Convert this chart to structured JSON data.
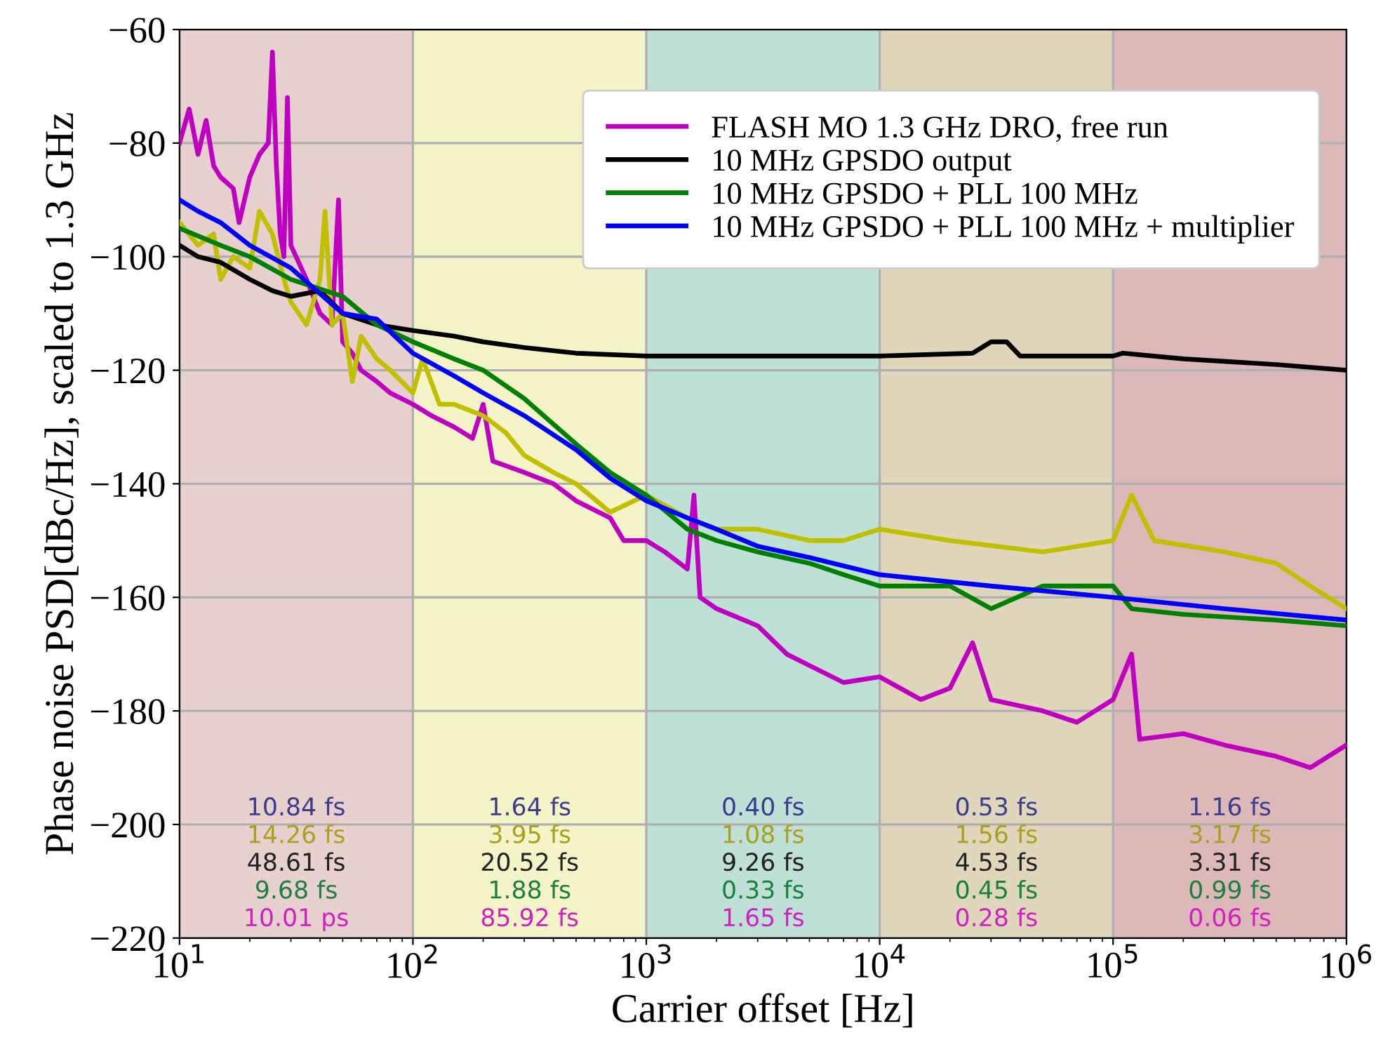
{
  "chart_data": {
    "type": "line",
    "xlabel": "Carrier offset [Hz]",
    "ylabel": "Phase noise PSD[dBc/Hz], scaled to 1.3 GHz",
    "log": "x",
    "xlim": [
      10,
      1000000
    ],
    "ylim": [
      -220,
      -60
    ],
    "xticks": [
      {
        "value": 10,
        "label": "10$^{1}$"
      },
      {
        "value": 100,
        "label": "10$^{2}$"
      },
      {
        "value": 1000,
        "label": "10$^{3}$"
      },
      {
        "value": 10000,
        "label": "10$^{4}$"
      },
      {
        "value": 100000,
        "label": "10$^{5}$"
      },
      {
        "value": 1000000,
        "label": "10$^{6}$"
      }
    ],
    "yticks": [
      {
        "value": -220,
        "label": "−220"
      },
      {
        "value": -200,
        "label": "−200"
      },
      {
        "value": -180,
        "label": "−180"
      },
      {
        "value": -160,
        "label": "−160"
      },
      {
        "value": -140,
        "label": "−140"
      },
      {
        "value": -120,
        "label": "−120"
      },
      {
        "value": -100,
        "label": "−100"
      },
      {
        "value": -80,
        "label": "−80"
      },
      {
        "value": -60,
        "label": "−60"
      }
    ],
    "grid": true,
    "legend": "top right",
    "bands": [
      {
        "axis": "x",
        "from": 10,
        "to": 100,
        "color": "#e8d0cf"
      },
      {
        "axis": "x",
        "from": 100,
        "to": 1000,
        "color": "#f5f3c8"
      },
      {
        "axis": "x",
        "from": 1000,
        "to": 10000,
        "color": "#bfe0d6"
      },
      {
        "axis": "x",
        "from": 10000,
        "to": 100000,
        "color": "#e0d6bb"
      },
      {
        "axis": "x",
        "from": 100000,
        "to": 1000000,
        "color": "#dcb8b8"
      }
    ],
    "series": [
      {
        "name": "FLASH MO 1.3 GHz DRO, free run",
        "color": "#c000c0",
        "x": [
          10,
          11,
          12,
          13,
          14,
          15,
          17,
          18,
          20,
          22,
          24,
          25,
          26,
          27,
          28,
          29,
          30,
          35,
          40,
          45,
          48,
          50,
          55,
          60,
          70,
          80,
          100,
          120,
          150,
          180,
          200,
          220,
          300,
          400,
          500,
          700,
          800,
          1000,
          1200,
          1500,
          1600,
          1700,
          2000,
          3000,
          4000,
          5000,
          7000,
          10000,
          15000,
          20000,
          25000,
          30000,
          50000,
          70000,
          100000,
          120000,
          130000,
          200000,
          300000,
          500000,
          700000,
          1000000
        ],
        "values": [
          -80,
          -74,
          -82,
          -76,
          -84,
          -86,
          -88,
          -94,
          -86,
          -82,
          -80,
          -64,
          -84,
          -96,
          -100,
          -72,
          -98,
          -104,
          -110,
          -112,
          -90,
          -115,
          -117,
          -120,
          -122,
          -124,
          -126,
          -128,
          -130,
          -132,
          -126,
          -136,
          -138,
          -140,
          -143,
          -146,
          -150,
          -150,
          -152,
          -155,
          -142,
          -160,
          -162,
          -165,
          -170,
          -172,
          -175,
          -174,
          -178,
          -176,
          -168,
          -178,
          -180,
          -182,
          -178,
          -170,
          -185,
          -184,
          -186,
          -188,
          -190,
          -186
        ]
      },
      {
        "color": "#c0c000",
        "x": [
          10,
          12,
          14,
          15,
          17,
          20,
          22,
          25,
          28,
          30,
          35,
          40,
          42,
          45,
          50,
          55,
          60,
          70,
          80,
          100,
          110,
          130,
          150,
          200,
          250,
          300,
          400,
          500,
          700,
          1000,
          1500,
          2000,
          3000,
          5000,
          7000,
          10000,
          20000,
          50000,
          100000,
          120000,
          150000,
          300000,
          500000,
          700000,
          1000000
        ],
        "values": [
          -94,
          -98,
          -96,
          -104,
          -100,
          -102,
          -92,
          -96,
          -104,
          -108,
          -112,
          -104,
          -92,
          -112,
          -110,
          -122,
          -114,
          -118,
          -120,
          -124,
          -118,
          -126,
          -126,
          -128,
          -131,
          -135,
          -138,
          -140,
          -145,
          -142,
          -146,
          -148,
          -148,
          -150,
          -150,
          -148,
          -150,
          -152,
          -150,
          -142,
          -150,
          -152,
          -154,
          -158,
          -162
        ]
      },
      {
        "name": "10 MHz GPSDO output",
        "color": "#000000",
        "x": [
          10,
          12,
          15,
          20,
          25,
          30,
          40,
          50,
          70,
          100,
          150,
          200,
          300,
          500,
          1000,
          3000,
          10000,
          25000,
          30000,
          35000,
          40000,
          100000,
          110000,
          200000,
          500000,
          1000000
        ],
        "values": [
          -98,
          -100,
          -101,
          -104,
          -106,
          -107,
          -106,
          -110,
          -112,
          -113,
          -114,
          -115,
          -116,
          -117,
          -117.5,
          -117.5,
          -117.5,
          -117,
          -115,
          -115,
          -117.5,
          -117.5,
          -117,
          -118,
          -119,
          -120
        ]
      },
      {
        "name": "10 MHz GPSDO + PLL 100 MHz",
        "color": "#008000",
        "x": [
          10,
          15,
          20,
          30,
          50,
          70,
          100,
          150,
          200,
          300,
          500,
          700,
          1000,
          1500,
          2000,
          3000,
          5000,
          7000,
          10000,
          20000,
          30000,
          50000,
          100000,
          120000,
          200000,
          500000,
          1000000
        ],
        "values": [
          -95,
          -98,
          -100,
          -104,
          -107,
          -112,
          -115,
          -118,
          -120,
          -125,
          -133,
          -138,
          -142,
          -148,
          -150,
          -152,
          -154,
          -156,
          -158,
          -158,
          -162,
          -158,
          -158,
          -162,
          -163,
          -164,
          -165
        ]
      },
      {
        "name": "10 MHz GPSDO + PLL 100 MHz + multiplier",
        "color": "#0000ff",
        "x": [
          10,
          12,
          15,
          20,
          30,
          50,
          70,
          100,
          150,
          200,
          300,
          500,
          700,
          1000,
          1500,
          2000,
          3000,
          5000,
          10000,
          30000,
          100000,
          300000,
          1000000
        ],
        "values": [
          -90,
          -92,
          -94,
          -98,
          -102,
          -110,
          -111,
          -117,
          -121,
          -124,
          -128,
          -134,
          -139,
          -143,
          -146,
          -148,
          -151,
          -153,
          -156,
          -158,
          -160,
          -162,
          -164
        ]
      }
    ],
    "annotations": [
      "10.84 fs",
      "14.26 fs",
      "48.61 fs",
      "9.68 fs",
      "10.01 ps",
      "1.64 fs",
      "3.95 fs",
      "20.52 fs",
      "1.88 fs",
      "85.92 fs",
      "0.40 fs",
      "1.08 fs",
      "9.26 fs",
      "0.33 fs",
      "1.65 fs",
      "0.53 fs",
      "1.56 fs",
      "4.53 fs",
      "0.45 fs",
      "0.28 fs",
      "1.16 fs",
      "3.17 fs",
      "3.31 fs",
      "0.99 fs",
      "0.06 fs"
    ]
  }
}
